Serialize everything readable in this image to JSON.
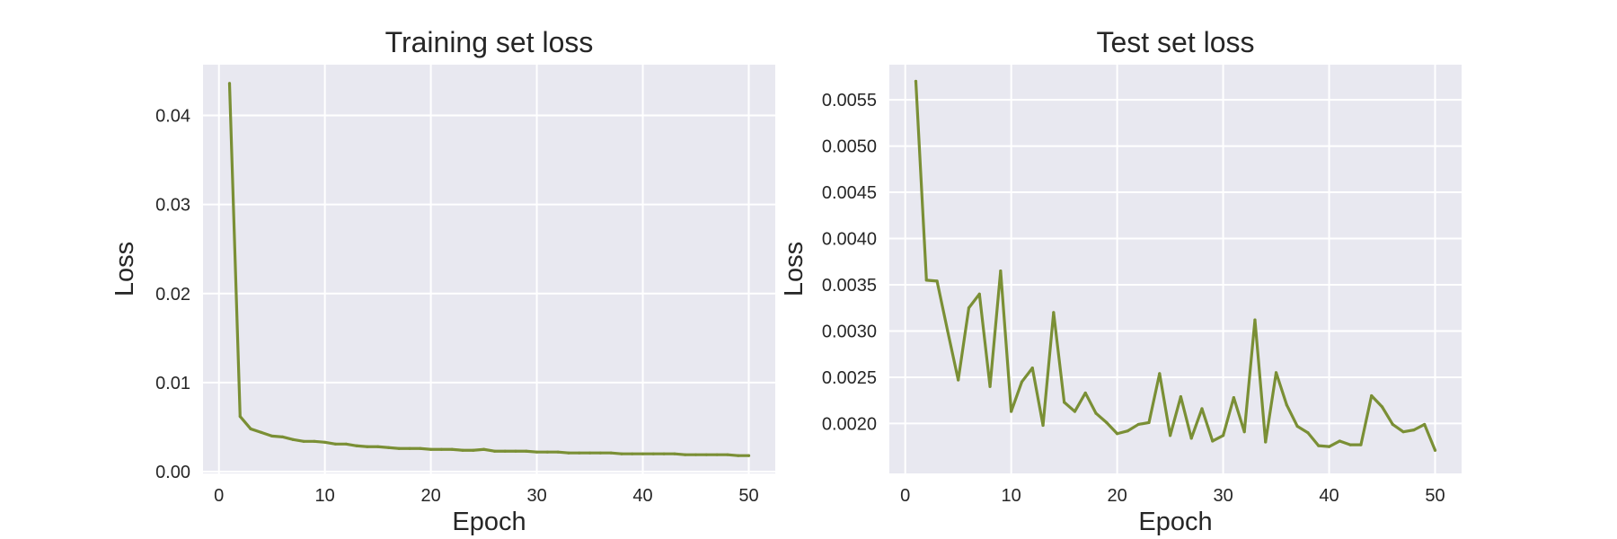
{
  "figure": {
    "background": "#ffffff",
    "plot_background": "#e8e8f0",
    "grid_color": "#ffffff",
    "line_color": "#7a8f35"
  },
  "chart_data": [
    {
      "type": "line",
      "title": "Training set loss",
      "xlabel": "Epoch",
      "ylabel": "Loss",
      "grid": true,
      "xlim": [
        -1.5,
        52.5
      ],
      "ylim": [
        -0.0002,
        0.0457
      ],
      "xticks": [
        0,
        10,
        20,
        30,
        40,
        50
      ],
      "xtick_labels": [
        "0",
        "10",
        "20",
        "30",
        "40",
        "50"
      ],
      "yticks": [
        0.0,
        0.01,
        0.02,
        0.03,
        0.04
      ],
      "ytick_labels": [
        "0.00",
        "0.01",
        "0.02",
        "0.03",
        "0.04"
      ],
      "x": [
        1,
        2,
        3,
        4,
        5,
        6,
        7,
        8,
        9,
        10,
        11,
        12,
        13,
        14,
        15,
        16,
        17,
        18,
        19,
        20,
        21,
        22,
        23,
        24,
        25,
        26,
        27,
        28,
        29,
        30,
        31,
        32,
        33,
        34,
        35,
        36,
        37,
        38,
        39,
        40,
        41,
        42,
        43,
        44,
        45,
        46,
        47,
        48,
        49,
        50
      ],
      "series": [
        {
          "values": [
            0.0436,
            0.0062,
            0.0048,
            0.0044,
            0.004,
            0.0039,
            0.0036,
            0.0034,
            0.0034,
            0.0033,
            0.0031,
            0.0031,
            0.0029,
            0.0028,
            0.0028,
            0.0027,
            0.0026,
            0.0026,
            0.0026,
            0.0025,
            0.0025,
            0.0025,
            0.0024,
            0.0024,
            0.0025,
            0.0023,
            0.0023,
            0.0023,
            0.0023,
            0.0022,
            0.0022,
            0.0022,
            0.0021,
            0.0021,
            0.0021,
            0.0021,
            0.0021,
            0.002,
            0.002,
            0.002,
            0.002,
            0.002,
            0.002,
            0.0019,
            0.0019,
            0.0019,
            0.0019,
            0.0019,
            0.0018,
            0.0018
          ],
          "color": "#7a8f35"
        }
      ]
    },
    {
      "type": "line",
      "title": "Test set loss",
      "xlabel": "Epoch",
      "ylabel": "Loss",
      "grid": true,
      "xlim": [
        -1.5,
        52.5
      ],
      "ylim": [
        0.00146,
        0.00588
      ],
      "xticks": [
        0,
        10,
        20,
        30,
        40,
        50
      ],
      "xtick_labels": [
        "0",
        "10",
        "20",
        "30",
        "40",
        "50"
      ],
      "yticks": [
        0.002,
        0.0025,
        0.003,
        0.0035,
        0.004,
        0.0045,
        0.005,
        0.0055
      ],
      "ytick_labels": [
        "0.0020",
        "0.0025",
        "0.0030",
        "0.0035",
        "0.0040",
        "0.0045",
        "0.0050",
        "0.0055"
      ],
      "x": [
        1,
        2,
        3,
        4,
        5,
        6,
        7,
        8,
        9,
        10,
        11,
        12,
        13,
        14,
        15,
        16,
        17,
        18,
        19,
        20,
        21,
        22,
        23,
        24,
        25,
        26,
        27,
        28,
        29,
        30,
        31,
        32,
        33,
        34,
        35,
        36,
        37,
        38,
        39,
        40,
        41,
        42,
        43,
        44,
        45,
        46,
        47,
        48,
        49,
        50
      ],
      "series": [
        {
          "values": [
            0.0057,
            0.00355,
            0.00354,
            0.003,
            0.00247,
            0.00325,
            0.0034,
            0.0024,
            0.00365,
            0.00213,
            0.00245,
            0.0026,
            0.00198,
            0.0032,
            0.00223,
            0.00213,
            0.00233,
            0.00211,
            0.00201,
            0.00189,
            0.00192,
            0.00199,
            0.00201,
            0.00254,
            0.00187,
            0.00229,
            0.00184,
            0.00216,
            0.00181,
            0.00187,
            0.00228,
            0.00191,
            0.00312,
            0.0018,
            0.00255,
            0.0022,
            0.00197,
            0.0019,
            0.00176,
            0.00175,
            0.00181,
            0.00177,
            0.00177,
            0.0023,
            0.00218,
            0.00199,
            0.00191,
            0.00193,
            0.00199,
            0.00171
          ],
          "color": "#7a8f35"
        }
      ]
    }
  ]
}
